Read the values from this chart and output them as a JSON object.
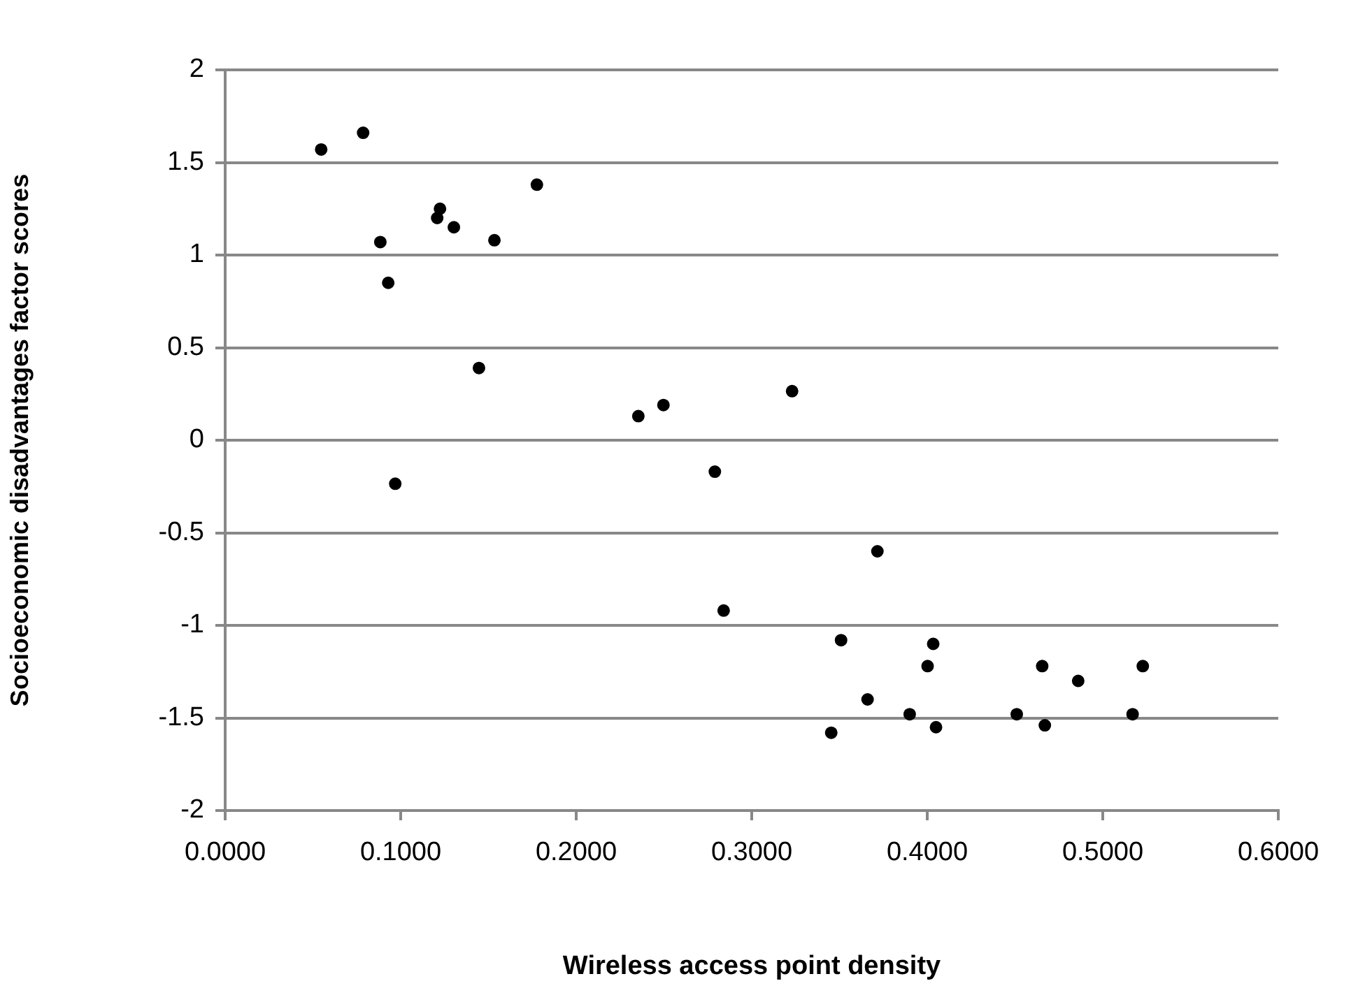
{
  "chart_data": {
    "type": "scatter",
    "xlabel": "Wireless access point density",
    "ylabel": "Socioeconomic disadvantages factor scores",
    "xlim": [
      0,
      0.6
    ],
    "xticks": [
      {
        "value": 0,
        "label": "0.0000"
      },
      {
        "value": 0.1,
        "label": "0.1000"
      },
      {
        "value": 0.2,
        "label": "0.2000"
      },
      {
        "value": 0.3,
        "label": "0.3000"
      },
      {
        "value": 0.4,
        "label": "0.4000"
      },
      {
        "value": 0.5,
        "label": "0.5000"
      },
      {
        "value": 0.6,
        "label": "0.6000"
      }
    ],
    "ylim": [
      -2,
      2
    ],
    "yticks": [
      -2,
      -1.5,
      -1,
      -0.5,
      0,
      0.5,
      1,
      1.5,
      2
    ],
    "grid": "y",
    "legend": false,
    "marker": "circle",
    "series": [
      {
        "color": "#000000",
        "x": [
          0.0547,
          0.0786,
          0.1776,
          0.1224,
          0.1208,
          0.1303,
          0.0884,
          0.1534,
          0.0929,
          0.1446,
          0.2354,
          0.2497,
          0.279,
          0.0969,
          0.323,
          0.3716,
          0.284,
          0.3509,
          0.4034,
          0.4002,
          0.4655,
          0.486,
          0.5228,
          0.366,
          0.39,
          0.451,
          0.517,
          0.3453,
          0.405,
          0.467
        ],
        "values": [
          1.57,
          1.66,
          1.38,
          1.25,
          1.2,
          1.15,
          1.07,
          1.08,
          0.85,
          0.39,
          0.13,
          0.19,
          -0.17,
          -0.235,
          0.265,
          -0.6,
          -0.92,
          -1.08,
          -1.1,
          -1.22,
          -1.22,
          -1.3,
          -1.22,
          -1.4,
          -1.48,
          -1.48,
          -1.48,
          -1.58,
          -1.55,
          -1.54
        ]
      }
    ]
  }
}
